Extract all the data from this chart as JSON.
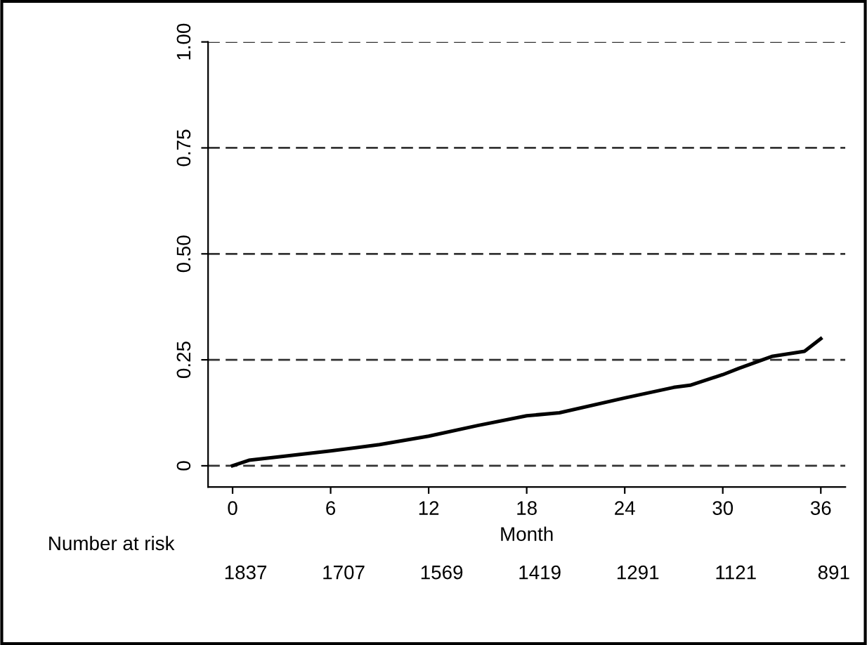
{
  "chart_data": {
    "type": "line",
    "xlabel": "Month",
    "x": [
      0,
      1,
      3,
      6,
      9,
      12,
      15,
      18,
      20,
      24,
      27,
      28,
      30,
      31,
      33,
      35,
      36
    ],
    "series": [
      {
        "color": "#000000",
        "values": [
          0,
          0.013,
          0.022,
          0.035,
          0.05,
          0.07,
          0.095,
          0.118,
          0.125,
          0.16,
          0.185,
          0.19,
          0.215,
          0.23,
          0.258,
          0.27,
          0.3
        ]
      }
    ],
    "xlim": [
      -1.5,
      37.5
    ],
    "ylim": [
      -0.05,
      1.0
    ],
    "xticks": [
      0,
      6,
      12,
      18,
      24,
      30,
      36
    ],
    "yticks": [
      {
        "value": 0,
        "label": "0"
      },
      {
        "value": 0.25,
        "label": "0.25"
      },
      {
        "value": 0.5,
        "label": "0.50"
      },
      {
        "value": 0.75,
        "label": "0.75"
      },
      {
        "value": 1,
        "label": "1.00"
      }
    ],
    "grid": "y",
    "legend": false,
    "line_style": "solid",
    "marker": "none",
    "annotations": [
      "Number at risk",
      "1837",
      "1707",
      "1569",
      "1419",
      "1291",
      "1121",
      "891"
    ]
  }
}
